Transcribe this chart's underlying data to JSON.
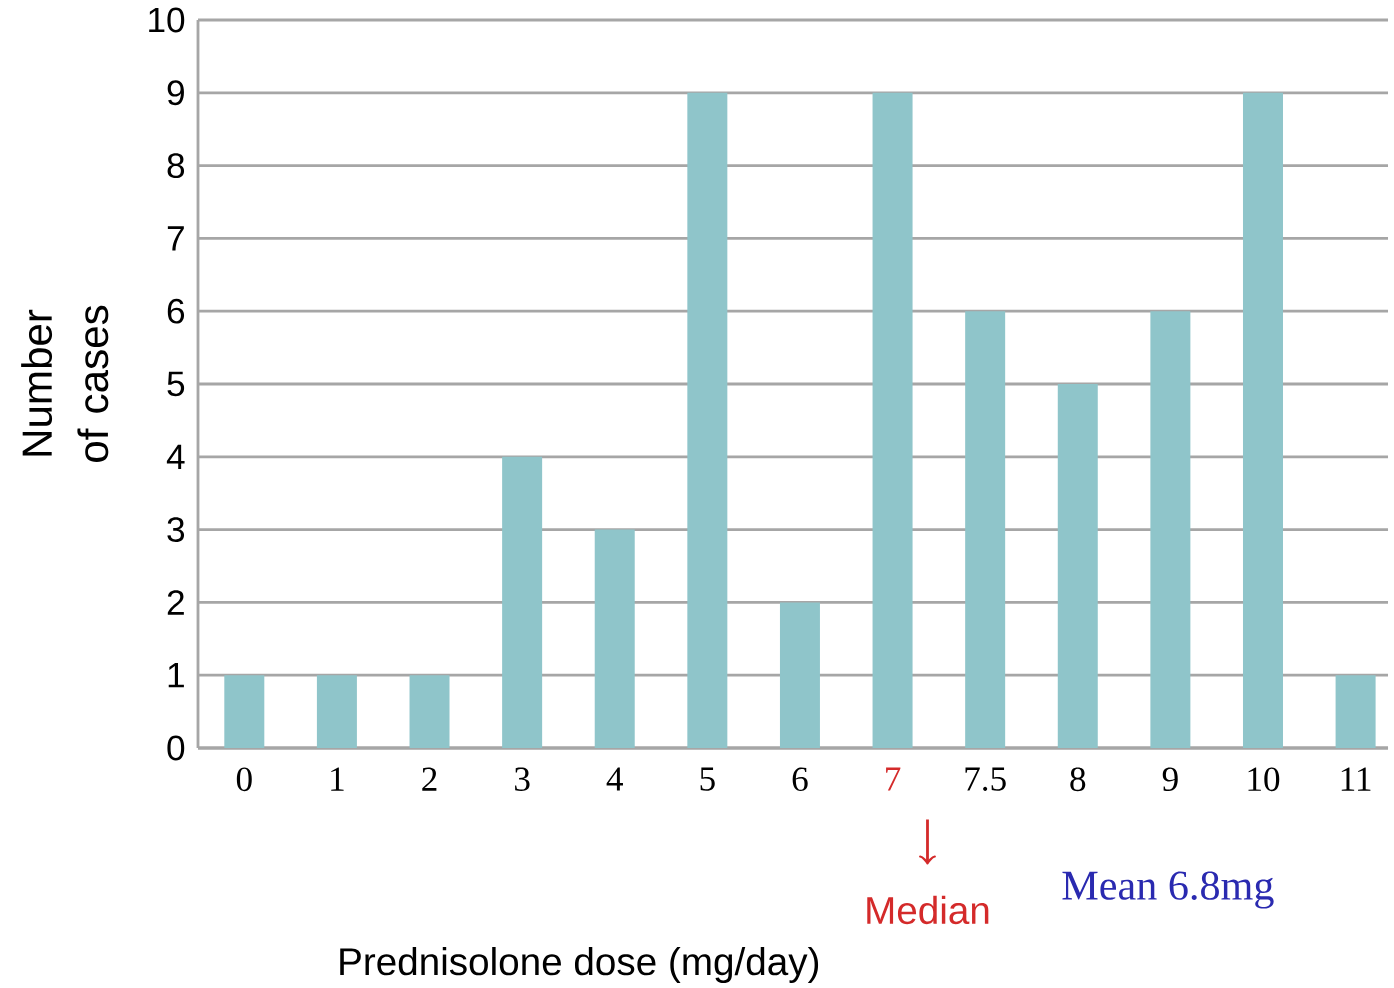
{
  "chart_data": {
    "type": "bar",
    "xlabel": "Prednisolone dose (mg/day)",
    "ylabel": "Number of cases",
    "categories": [
      "0",
      "1",
      "2",
      "3",
      "4",
      "5",
      "6",
      "7",
      "7.5",
      "8",
      "9",
      "10",
      "11"
    ],
    "values": [
      1,
      1,
      1,
      4,
      3,
      9,
      2,
      9,
      6,
      5,
      6,
      9,
      1
    ],
    "color": "#8fc5ca",
    "ylim": [
      0,
      10
    ],
    "yticks": [
      0,
      1,
      2,
      3,
      4,
      5,
      6,
      7,
      8,
      9,
      10
    ],
    "grid": "y",
    "annotations": [
      "Median",
      "Mean    6.8mg"
    ]
  }
}
